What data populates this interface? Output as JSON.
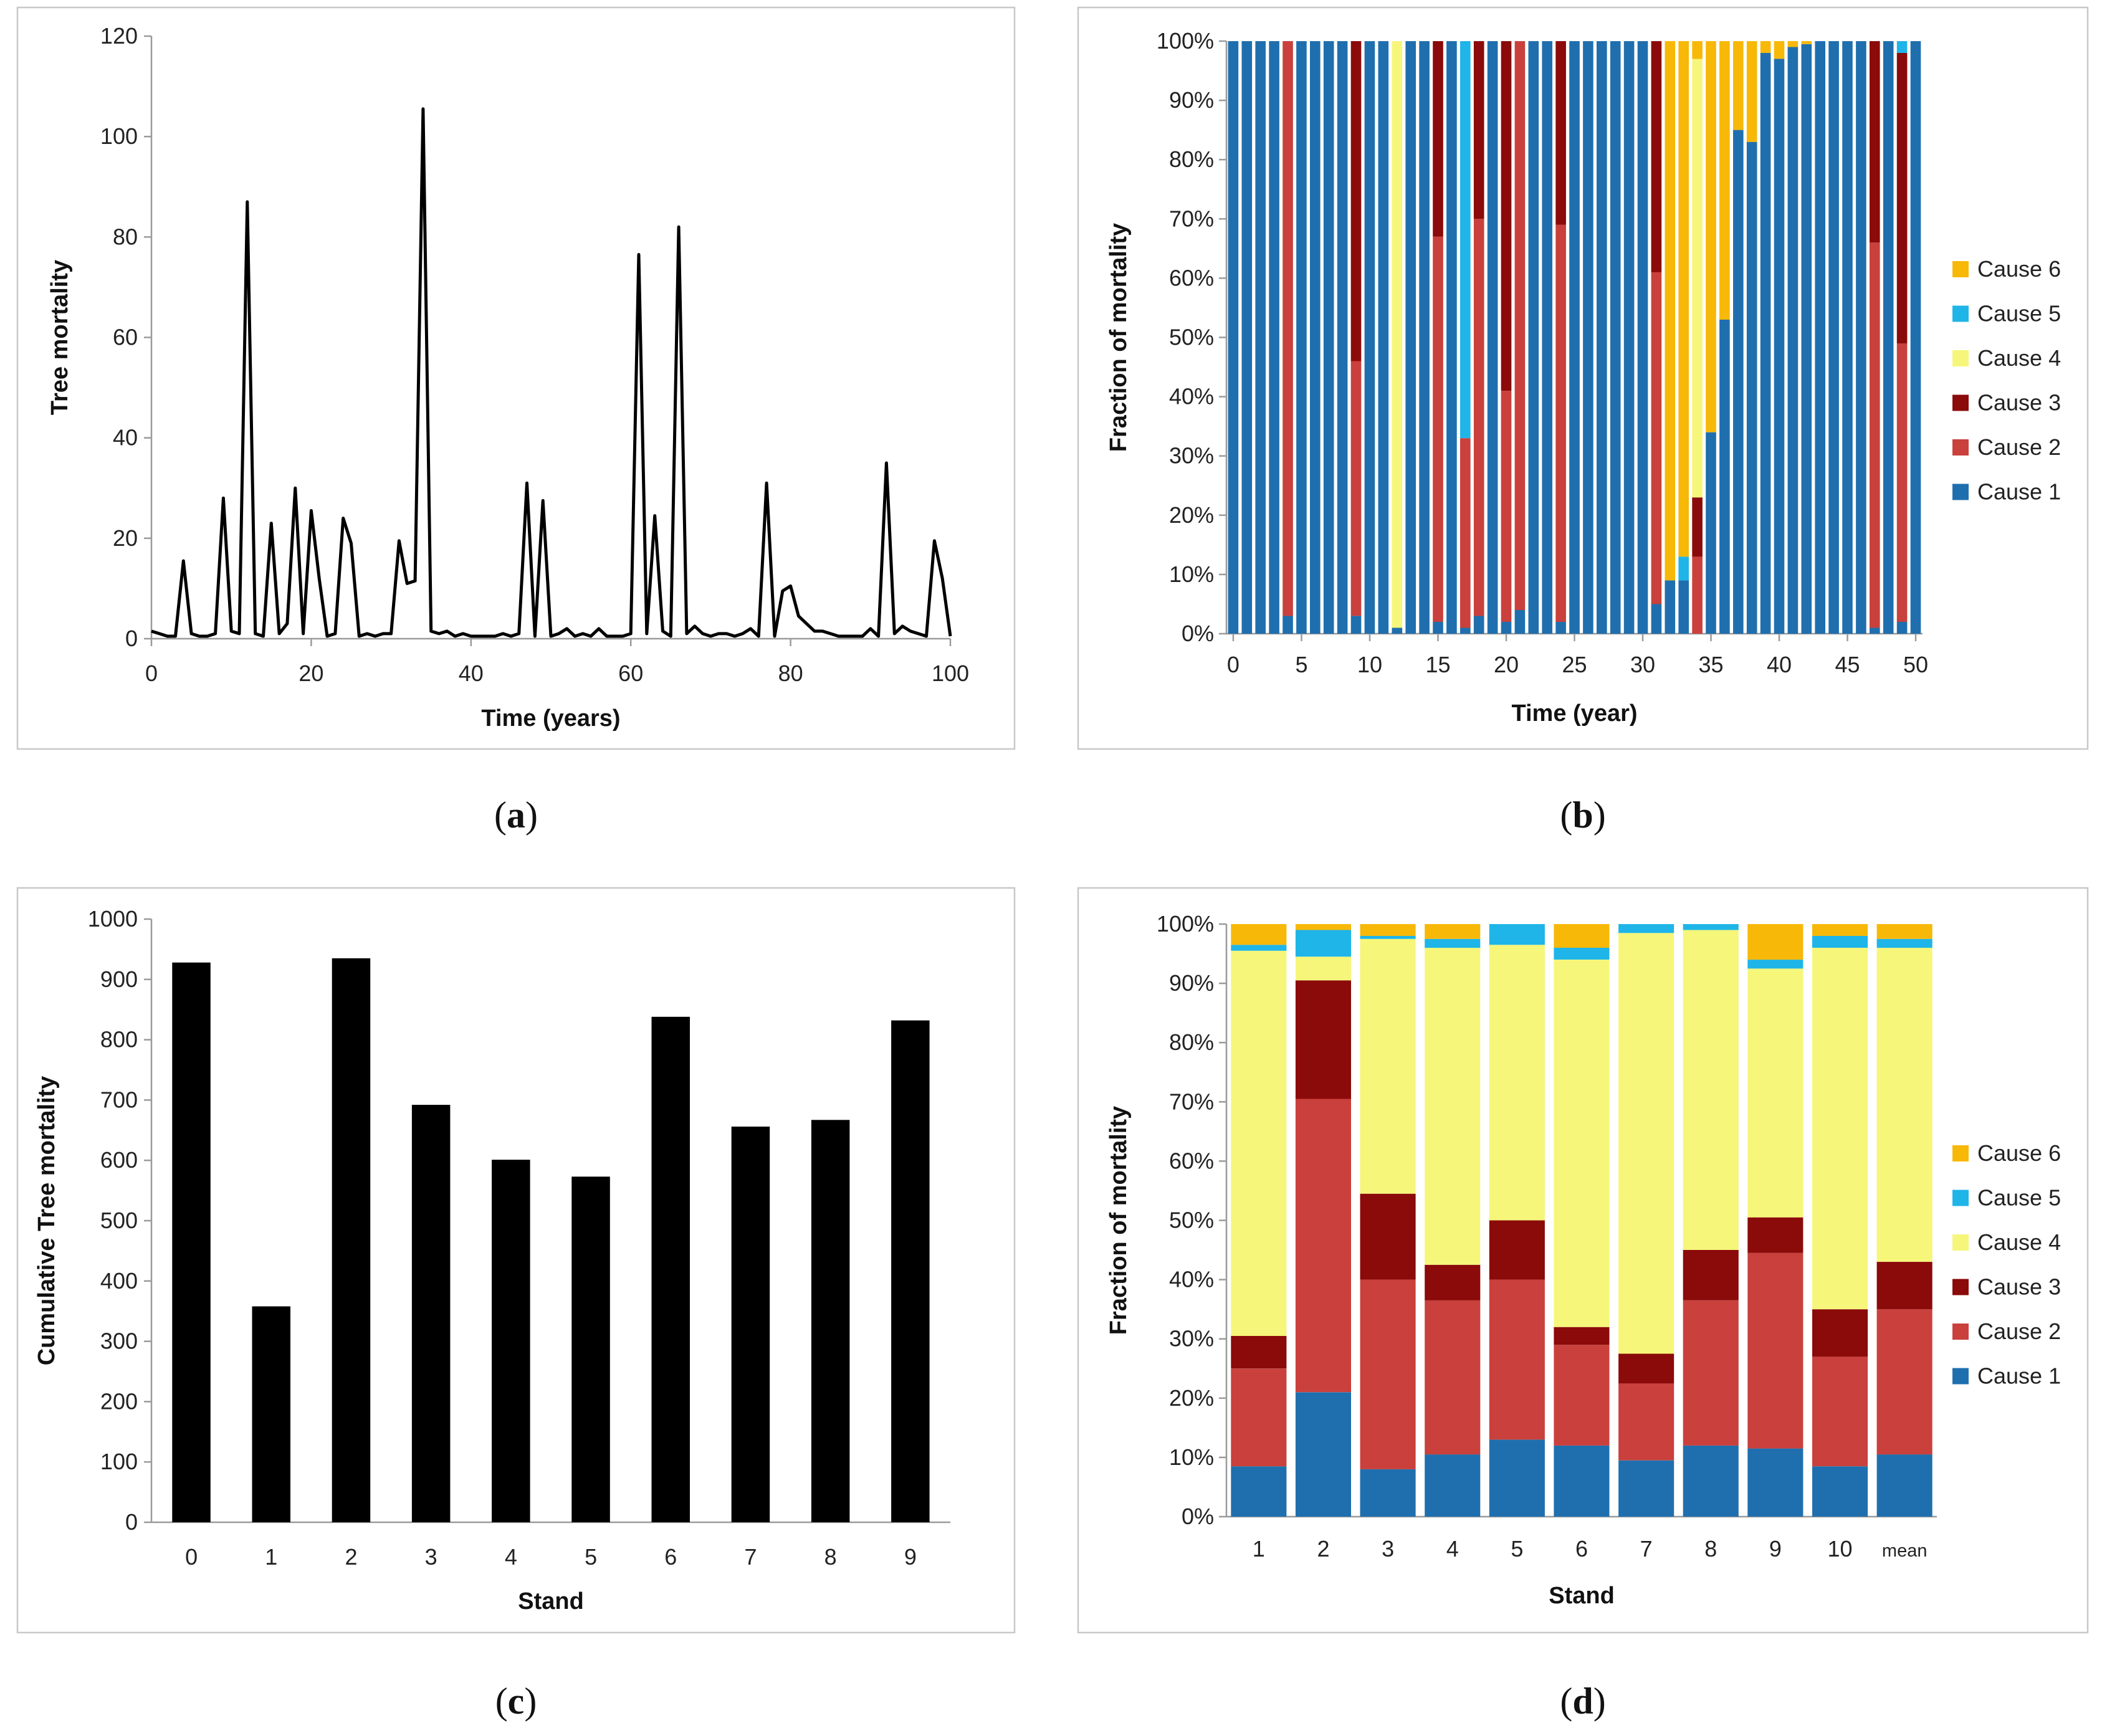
{
  "colors": {
    "cause1": "#1f6fae",
    "cause2": "#c9403c",
    "cause3": "#8b0a0a",
    "cause4": "#f6f67a",
    "cause5": "#1fb5e8",
    "cause6": "#f7b808",
    "black": "#000000"
  },
  "panel_labels": [
    {
      "open": "(",
      "letter": "a",
      "close": ")"
    },
    {
      "open": "(",
      "letter": "b",
      "close": ")"
    },
    {
      "open": "(",
      "letter": "c",
      "close": ")"
    },
    {
      "open": "(",
      "letter": "d",
      "close": ")"
    }
  ],
  "chart_data": [
    {
      "id": "a",
      "type": "line",
      "xlabel": "Time (years)",
      "ylabel": "Tree mortality",
      "xlim": [
        0,
        100
      ],
      "ylim": [
        0,
        120
      ],
      "xticks": [
        0,
        20,
        40,
        60,
        80,
        100
      ],
      "yticks": [
        0,
        20,
        40,
        60,
        80,
        100,
        120
      ],
      "x": [
        0,
        1,
        2,
        3,
        4,
        5,
        6,
        7,
        8,
        9,
        10,
        11,
        12,
        13,
        14,
        15,
        16,
        17,
        18,
        19,
        20,
        21,
        22,
        23,
        24,
        25,
        26,
        27,
        28,
        29,
        30,
        31,
        32,
        33,
        34,
        35,
        36,
        37,
        38,
        39,
        40,
        41,
        42,
        43,
        44,
        45,
        46,
        47,
        48,
        49,
        50,
        51,
        52,
        53,
        54,
        55,
        56,
        57,
        58,
        59,
        60,
        61,
        62,
        63,
        64,
        65,
        66,
        67,
        68,
        69,
        70,
        71,
        72,
        73,
        74,
        75,
        76,
        77,
        78,
        79,
        80,
        81,
        82,
        83,
        84,
        85,
        86,
        87,
        88,
        89,
        90,
        91,
        92,
        93,
        94,
        95,
        96,
        97,
        98,
        99,
        100
      ],
      "y": [
        1.5,
        1,
        0.5,
        0.5,
        15.5,
        1,
        0.5,
        0.5,
        1,
        28,
        1.5,
        1,
        87,
        1,
        0.5,
        23,
        1,
        3,
        30,
        1,
        25.5,
        12,
        0.5,
        1,
        24,
        19,
        0.5,
        1,
        0.5,
        1,
        1,
        19.5,
        11,
        11.5,
        105.5,
        1.5,
        1,
        1.5,
        0.5,
        1,
        0.5,
        0.5,
        0.5,
        0.5,
        1,
        0.5,
        1,
        31,
        0.5,
        27.5,
        0.5,
        1,
        2,
        0.5,
        1,
        0.5,
        2,
        0.5,
        0.5,
        0.5,
        1,
        76.5,
        1,
        24.5,
        1.5,
        0.5,
        82,
        1,
        2.5,
        1,
        0.5,
        1,
        1,
        0.5,
        1,
        2,
        0.5,
        31,
        0.5,
        9.5,
        10.5,
        4.5,
        3,
        1.5,
        1.5,
        1,
        0.5,
        0.5,
        0.5,
        0.5,
        2,
        0.5,
        35,
        1,
        2.5,
        1.5,
        1,
        0.5,
        19.5,
        12,
        0.5
      ]
    },
    {
      "id": "b",
      "type": "stacked-bar",
      "xlabel": "Time (year)",
      "ylabel": "Fraction of mortality",
      "xticks": [
        0,
        5,
        10,
        15,
        20,
        25,
        30,
        35,
        40,
        45,
        50
      ],
      "yticks": [
        "0%",
        "10%",
        "20%",
        "30%",
        "40%",
        "50%",
        "60%",
        "70%",
        "80%",
        "90%",
        "100%"
      ],
      "series_names": [
        "Cause 1",
        "Cause 2",
        "Cause 3",
        "Cause 4",
        "Cause 5",
        "Cause 6"
      ],
      "legend": [
        "Cause 6",
        "Cause 5",
        "Cause 4",
        "Cause 3",
        "Cause 2",
        "Cause 1"
      ],
      "stacks": [
        [
          100,
          0,
          0,
          0,
          0,
          0
        ],
        [
          100,
          0,
          0,
          0,
          0,
          0
        ],
        [
          100,
          0,
          0,
          0,
          0,
          0
        ],
        [
          100,
          0,
          0,
          0,
          0,
          0
        ],
        [
          3,
          97,
          0,
          0,
          0,
          0
        ],
        [
          100,
          0,
          0,
          0,
          0,
          0
        ],
        [
          100,
          0,
          0,
          0,
          0,
          0
        ],
        [
          100,
          0,
          0,
          0,
          0,
          0
        ],
        [
          100,
          0,
          0,
          0,
          0,
          0
        ],
        [
          3,
          43,
          54,
          0,
          0,
          0
        ],
        [
          100,
          0,
          0,
          0,
          0,
          0
        ],
        [
          100,
          0,
          0,
          0,
          0,
          0
        ],
        [
          1,
          0,
          0,
          99,
          0,
          0
        ],
        [
          100,
          0,
          0,
          0,
          0,
          0
        ],
        [
          100,
          0,
          0,
          0,
          0,
          0
        ],
        [
          2,
          65,
          33,
          0,
          0,
          0
        ],
        [
          100,
          0,
          0,
          0,
          0,
          0
        ],
        [
          1,
          32,
          0,
          0,
          67,
          0
        ],
        [
          3,
          67,
          30,
          0,
          0,
          0
        ],
        [
          100,
          0,
          0,
          0,
          0,
          0
        ],
        [
          2,
          39,
          59,
          0,
          0,
          0
        ],
        [
          4,
          96,
          0,
          0,
          0,
          0
        ],
        [
          100,
          0,
          0,
          0,
          0,
          0
        ],
        [
          100,
          0,
          0,
          0,
          0,
          0
        ],
        [
          2,
          67,
          31,
          0,
          0,
          0
        ],
        [
          100,
          0,
          0,
          0,
          0,
          0
        ],
        [
          100,
          0,
          0,
          0,
          0,
          0
        ],
        [
          100,
          0,
          0,
          0,
          0,
          0
        ],
        [
          100,
          0,
          0,
          0,
          0,
          0
        ],
        [
          100,
          0,
          0,
          0,
          0,
          0
        ],
        [
          100,
          0,
          0,
          0,
          0,
          0
        ],
        [
          5,
          56,
          39,
          0,
          0,
          0
        ],
        [
          9,
          0,
          0,
          0,
          0,
          91
        ],
        [
          9,
          0,
          0,
          0,
          4,
          87
        ],
        [
          0,
          13,
          10,
          74,
          0,
          3
        ],
        [
          34,
          0,
          0,
          0,
          0,
          66
        ],
        [
          53,
          0,
          0,
          0,
          0,
          47
        ],
        [
          85,
          0,
          0,
          0,
          0,
          15
        ],
        [
          83,
          0,
          0,
          0,
          0,
          17
        ],
        [
          98,
          0,
          0,
          0,
          0,
          2
        ],
        [
          97,
          0,
          0,
          0,
          0,
          3
        ],
        [
          99,
          0,
          0,
          0,
          0,
          1
        ],
        [
          99.5,
          0,
          0,
          0,
          0,
          0.5
        ],
        [
          100,
          0,
          0,
          0,
          0,
          0
        ],
        [
          100,
          0,
          0,
          0,
          0,
          0
        ],
        [
          100,
          0,
          0,
          0,
          0,
          0
        ],
        [
          100,
          0,
          0,
          0,
          0,
          0
        ],
        [
          1,
          65,
          34,
          0,
          0,
          0
        ],
        [
          100,
          0,
          0,
          0,
          0,
          0
        ],
        [
          2,
          47,
          49,
          0,
          2,
          0
        ],
        [
          100,
          0,
          0,
          0,
          0,
          0
        ]
      ]
    },
    {
      "id": "c",
      "type": "bar",
      "xlabel": "Stand",
      "ylabel": "Cumulative Tree mortality",
      "ylim": [
        0,
        1000
      ],
      "yticks": [
        0,
        100,
        200,
        300,
        400,
        500,
        600,
        700,
        800,
        900,
        1000
      ],
      "categories": [
        "0",
        "1",
        "2",
        "3",
        "4",
        "5",
        "6",
        "7",
        "8",
        "9"
      ],
      "values": [
        928,
        358,
        935,
        692,
        601,
        573,
        838,
        656,
        667,
        832
      ]
    },
    {
      "id": "d",
      "type": "stacked-bar",
      "xlabel": "Stand",
      "ylabel": "Fraction of mortality",
      "yticks": [
        "0%",
        "10%",
        "20%",
        "30%",
        "40%",
        "50%",
        "60%",
        "70%",
        "80%",
        "90%",
        "100%"
      ],
      "categories": [
        "1",
        "2",
        "3",
        "4",
        "5",
        "6",
        "7",
        "8",
        "9",
        "10",
        "mean"
      ],
      "series_names": [
        "Cause 1",
        "Cause 2",
        "Cause 3",
        "Cause 4",
        "Cause 5",
        "Cause 6"
      ],
      "legend": [
        "Cause 6",
        "Cause 5",
        "Cause 4",
        "Cause 3",
        "Cause 2",
        "Cause 1"
      ],
      "stacks": [
        [
          8.5,
          16.5,
          5.5,
          65,
          1,
          3.5
        ],
        [
          21,
          49.5,
          20,
          4,
          4.5,
          1
        ],
        [
          8,
          32,
          14.5,
          43,
          0.5,
          2
        ],
        [
          10.5,
          26,
          6,
          53.5,
          1.5,
          2.5
        ],
        [
          13,
          27,
          10,
          46.5,
          3.5,
          0
        ],
        [
          12,
          17,
          3,
          62,
          2,
          4
        ],
        [
          9.5,
          13,
          5,
          71,
          1.5,
          0
        ],
        [
          12,
          24.5,
          8.5,
          54,
          1,
          0
        ],
        [
          11.5,
          33,
          6,
          42,
          1.5,
          6
        ],
        [
          8.5,
          18.5,
          8,
          61,
          2,
          2
        ],
        [
          10.5,
          24.5,
          8,
          53,
          1.5,
          2.5
        ]
      ]
    }
  ]
}
